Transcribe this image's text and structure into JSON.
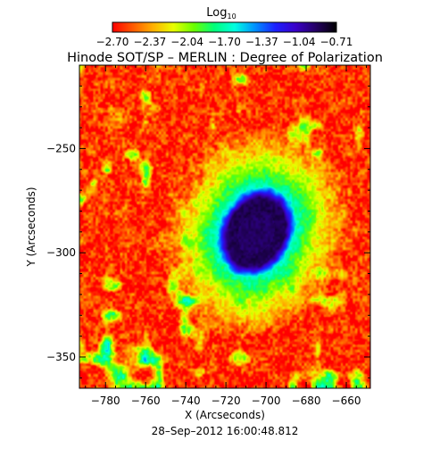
{
  "chart_data": {
    "type": "heatmap",
    "title": "Hinode SOT/SP – MERLIN : Degree of Polarization",
    "colorbar": {
      "label": "Log",
      "label_subscript": "10",
      "tick_labels": [
        "−2.70",
        "−2.37",
        "−2.04",
        "−1.70",
        "−1.37",
        "−1.04",
        "−0.71"
      ],
      "range": [
        -2.7,
        -0.71
      ],
      "colors": [
        "#ff0000",
        "#ff5a00",
        "#ffb000",
        "#e8ff00",
        "#6aff00",
        "#00ff7a",
        "#00ffe0",
        "#0090ff",
        "#1c20ff",
        "#3a00c8",
        "#240062",
        "#000000"
      ]
    },
    "xlabel": "X (Arcseconds)",
    "ylabel": "Y (Arcseconds)",
    "xlim": [
      -793,
      -648
    ],
    "ylim": [
      -365,
      -210
    ],
    "x_ticks": [
      {
        "value": -780,
        "label": "−780"
      },
      {
        "value": -760,
        "label": "−760"
      },
      {
        "value": -740,
        "label": "−740"
      },
      {
        "value": -720,
        "label": "−720"
      },
      {
        "value": -700,
        "label": "−700"
      },
      {
        "value": -680,
        "label": "−680"
      },
      {
        "value": -660,
        "label": "−660"
      }
    ],
    "y_ticks": [
      {
        "value": -250,
        "label": "−250"
      },
      {
        "value": -300,
        "label": "−300"
      },
      {
        "value": -350,
        "label": "−350"
      }
    ],
    "sunspot": {
      "center_x": -705,
      "center_y": -290,
      "umbra_semi_axes": [
        16,
        20
      ],
      "penumbra_semi_axes": [
        30,
        35
      ]
    },
    "background_level": -2.6,
    "umbra_level": -0.85,
    "timestamp": "28–Sep–2012 16:00:48.812"
  }
}
